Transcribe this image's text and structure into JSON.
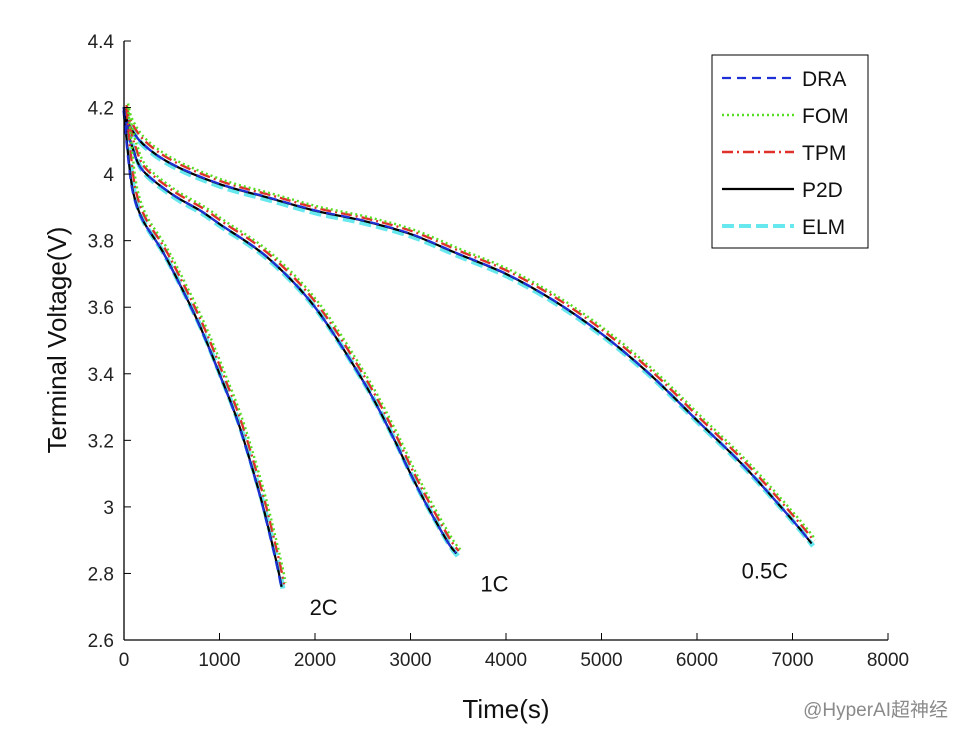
{
  "chart_data": {
    "type": "line",
    "xlabel": "Time(s)",
    "ylabel": "Terminal Voltage(V)",
    "xlim": [
      0,
      8000
    ],
    "ylim": [
      2.6,
      4.4
    ],
    "x_ticks": [
      0,
      1000,
      2000,
      3000,
      4000,
      5000,
      6000,
      7000,
      8000
    ],
    "x_tick_labels": [
      "0",
      "1000",
      "2000",
      "3000",
      "4000",
      "5000",
      "6000",
      "7000",
      "8000"
    ],
    "y_ticks": [
      2.6,
      2.8,
      3.0,
      3.2,
      3.4,
      3.6,
      3.8,
      4.0,
      4.2,
      4.4
    ],
    "y_tick_labels": [
      "2.6",
      "2.8",
      "3",
      "3.2",
      "3.4",
      "3.6",
      "3.8",
      "4",
      "4.2",
      "4.4"
    ],
    "grid": false,
    "legend_position": "top-right",
    "series": [
      {
        "name": "DRA",
        "color": "#1f2fd6",
        "style": "dashed"
      },
      {
        "name": "FOM",
        "color": "#55dd22",
        "style": "dotted"
      },
      {
        "name": "TPM",
        "color": "#e0302a",
        "style": "dashdot"
      },
      {
        "name": "P2D",
        "color": "#000000",
        "style": "solid"
      },
      {
        "name": "ELM",
        "color": "#66e8ee",
        "style": "dashed-thick"
      }
    ],
    "curves": [
      {
        "label": "0.5C",
        "x": [
          0,
          50,
          200,
          500,
          1000,
          1500,
          2000,
          2500,
          3000,
          3500,
          4000,
          4500,
          5000,
          5500,
          6000,
          6500,
          7000,
          7200
        ],
        "y": [
          4.2,
          4.15,
          4.09,
          4.03,
          3.97,
          3.93,
          3.89,
          3.86,
          3.82,
          3.76,
          3.7,
          3.62,
          3.52,
          3.4,
          3.26,
          3.12,
          2.96,
          2.89
        ]
      },
      {
        "label": "1C",
        "x": [
          0,
          50,
          100,
          200,
          500,
          800,
          1000,
          1500,
          2000,
          2500,
          2800,
          3000,
          3200,
          3400,
          3480
        ],
        "y": [
          4.2,
          4.12,
          4.07,
          4.01,
          3.94,
          3.89,
          3.85,
          3.75,
          3.6,
          3.38,
          3.22,
          3.1,
          2.99,
          2.89,
          2.86
        ]
      },
      {
        "label": "2C",
        "x": [
          0,
          50,
          100,
          200,
          400,
          600,
          800,
          1000,
          1200,
          1400,
          1500,
          1600,
          1650
        ],
        "y": [
          4.19,
          4.04,
          3.94,
          3.86,
          3.77,
          3.66,
          3.54,
          3.4,
          3.25,
          3.06,
          2.95,
          2.83,
          2.76
        ]
      }
    ]
  },
  "watermark": "@HyperAI超神经"
}
